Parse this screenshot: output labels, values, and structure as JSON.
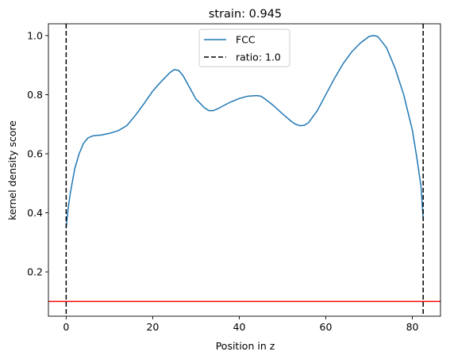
{
  "chart_data": {
    "type": "line",
    "title": "strain: 0.945",
    "xlabel": "Position in z",
    "ylabel": "kernel density score",
    "xlim": [
      -4.1,
      86.5
    ],
    "ylim": [
      0.05,
      1.04
    ],
    "xticks": [
      0,
      20,
      40,
      60,
      80
    ],
    "xtick_labels": [
      "0",
      "20",
      "40",
      "60",
      "80"
    ],
    "yticks": [
      0.2,
      0.4,
      0.6,
      0.8,
      1.0
    ],
    "ytick_labels": [
      "0.2",
      "0.4",
      "0.6",
      "0.8",
      "1.0"
    ],
    "grid": false,
    "legend_placement": "upper-center",
    "series": [
      {
        "name": "FCC",
        "color": "#1f77b4",
        "x": [
          0,
          0.5,
          1,
          1.5,
          2,
          3,
          4,
          5,
          6,
          7,
          8,
          10,
          12,
          14,
          16,
          18,
          20,
          22,
          24,
          25,
          26,
          27,
          28,
          30,
          32,
          33,
          34,
          35,
          36,
          38,
          40,
          42,
          44,
          45,
          46,
          48,
          50,
          52,
          53,
          54,
          55,
          56,
          58,
          60,
          62,
          64,
          66,
          68,
          70,
          71,
          72,
          74,
          76,
          78,
          80,
          81,
          82,
          82.5
        ],
        "y": [
          0.35,
          0.42,
          0.47,
          0.51,
          0.55,
          0.6,
          0.635,
          0.653,
          0.66,
          0.662,
          0.663,
          0.669,
          0.678,
          0.695,
          0.73,
          0.77,
          0.812,
          0.845,
          0.875,
          0.885,
          0.882,
          0.865,
          0.838,
          0.785,
          0.755,
          0.746,
          0.746,
          0.752,
          0.76,
          0.775,
          0.787,
          0.795,
          0.797,
          0.795,
          0.785,
          0.762,
          0.735,
          0.71,
          0.7,
          0.695,
          0.696,
          0.705,
          0.745,
          0.8,
          0.855,
          0.905,
          0.945,
          0.975,
          0.997,
          1.0,
          0.997,
          0.96,
          0.89,
          0.8,
          0.68,
          0.59,
          0.49,
          0.38
        ]
      },
      {
        "name": "ratio: 1.0",
        "color": "#000000",
        "style": "dashed",
        "vertical_lines_x": [
          0,
          82.5
        ]
      }
    ],
    "horizontal_line": {
      "y": 0.1,
      "color": "#ff0000"
    }
  }
}
